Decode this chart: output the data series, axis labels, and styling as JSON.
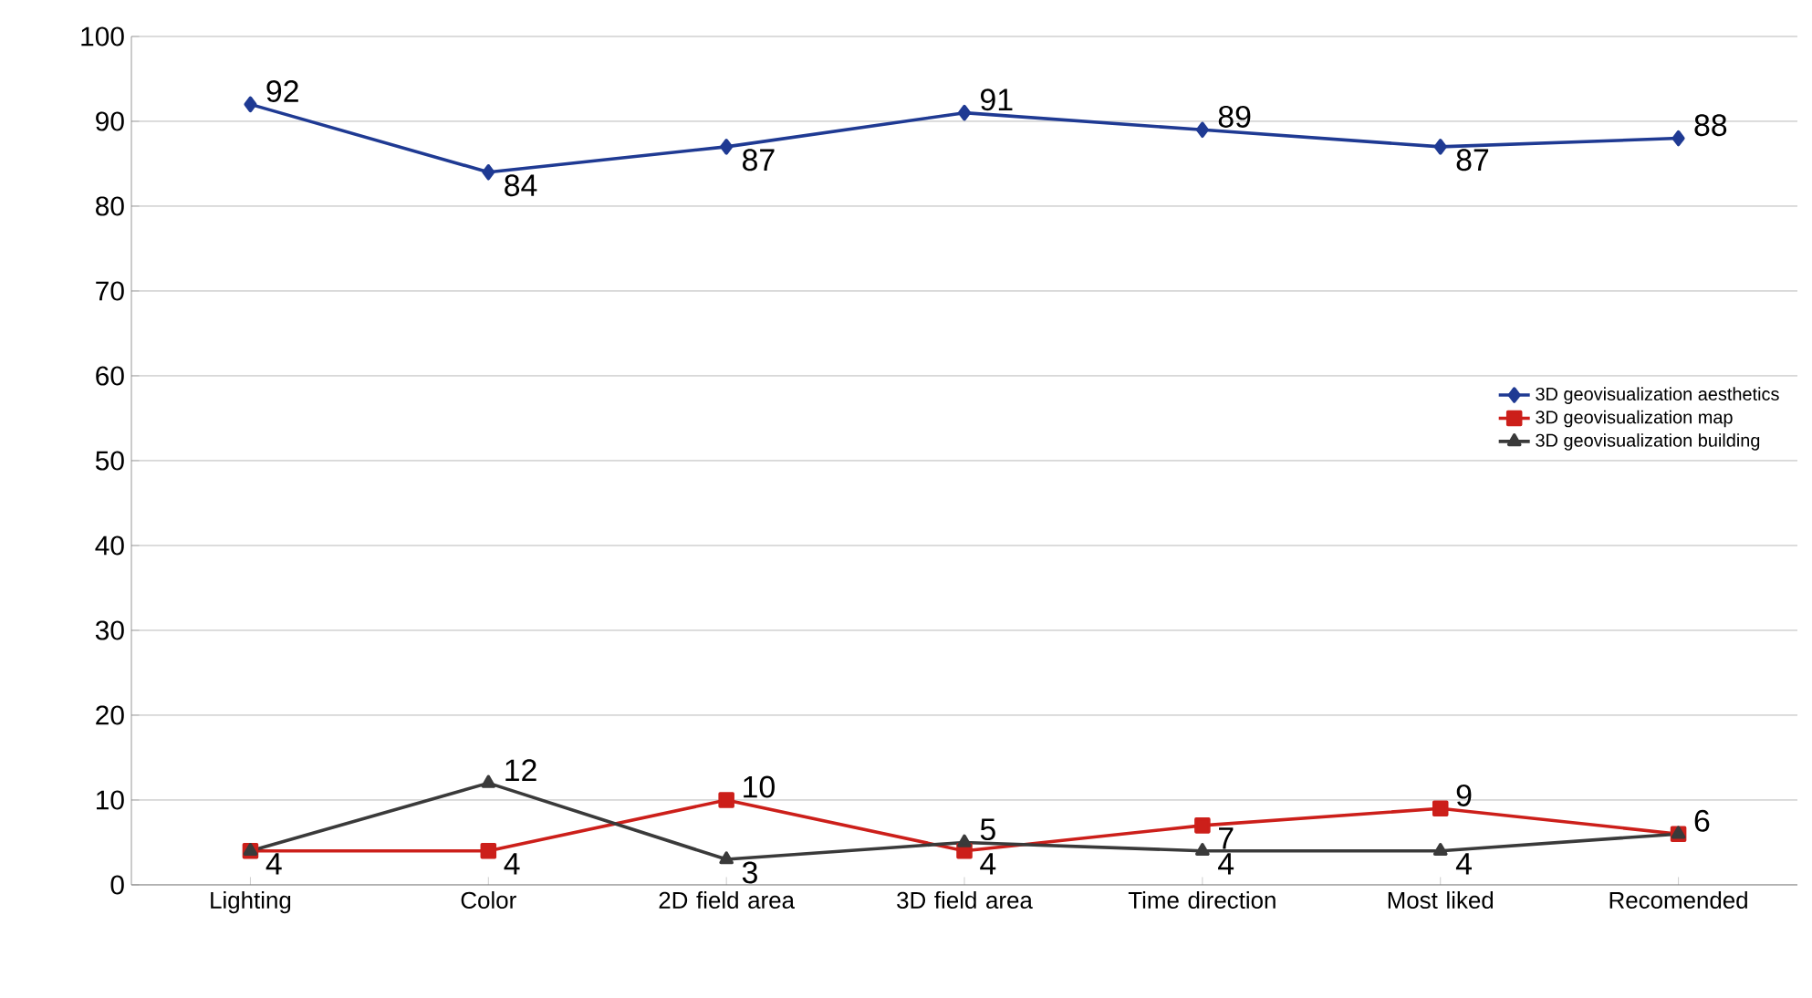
{
  "chart_data": {
    "type": "line",
    "categories": [
      "Lighting",
      "Color",
      "2D field area",
      "3D field area",
      "Time direction",
      "Most liked",
      "Recomended"
    ],
    "series": [
      {
        "name": "3D geovisualization aesthetics",
        "color": "#1f3a93",
        "marker": "diamond",
        "values": [
          92,
          84,
          87,
          91,
          89,
          87,
          88
        ],
        "value_labels": [
          "92",
          "84",
          "87",
          "91",
          "89",
          "87",
          "88"
        ]
      },
      {
        "name": "3D geovisualization map",
        "color": "#cc1f1a",
        "marker": "square",
        "values": [
          4,
          4,
          10,
          4,
          7,
          9,
          6
        ],
        "value_labels": [
          "4",
          "4",
          "10",
          "4",
          "7",
          "9",
          "6"
        ]
      },
      {
        "name": "3D geovisualization building",
        "color": "#3a3a3a",
        "marker": "triangle",
        "values": [
          4,
          12,
          3,
          5,
          4,
          4,
          6
        ],
        "value_labels": [
          null,
          "12",
          "3",
          "5",
          "4",
          "4",
          null
        ]
      }
    ],
    "ylim": [
      0,
      100
    ],
    "yticks": [
      0,
      10,
      20,
      30,
      40,
      50,
      60,
      70,
      80,
      90,
      100
    ],
    "grid": "y",
    "legend": "right",
    "line_style": "solid"
  }
}
